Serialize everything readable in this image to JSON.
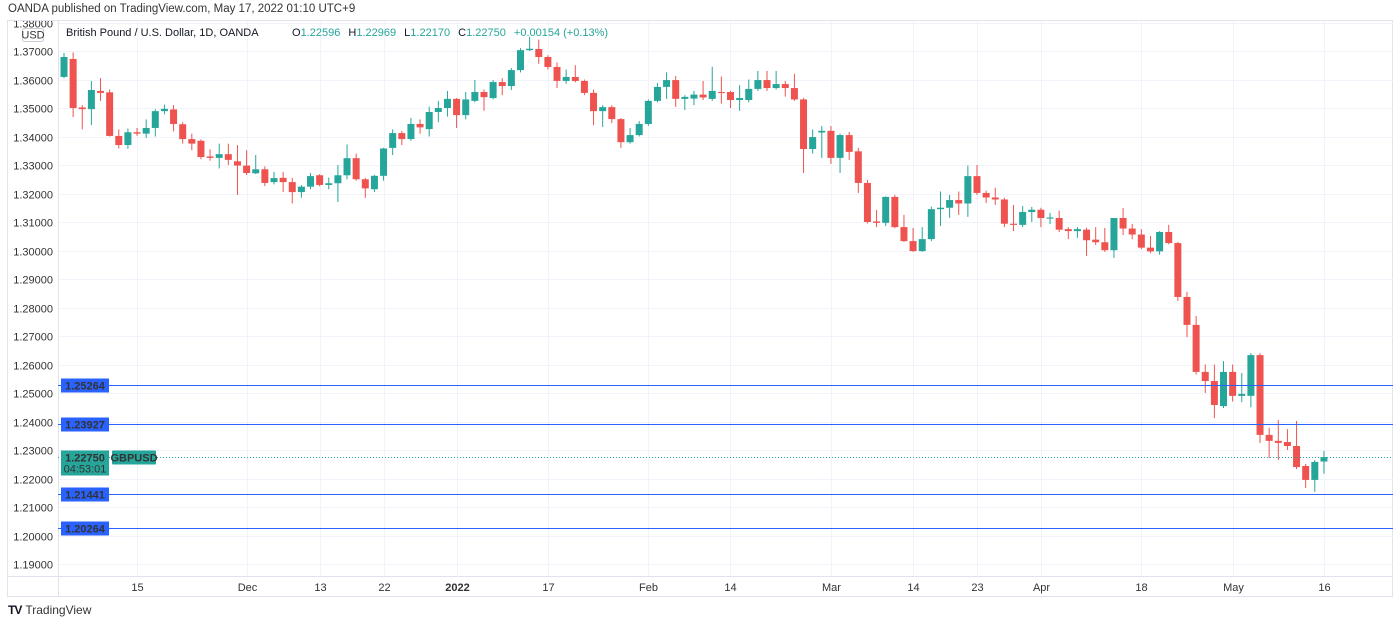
{
  "header": {
    "published": "OANDA published on TradingView.com, May 17, 2022 01:10 UTC+9"
  },
  "legend": {
    "symbol_desc": "British Pound / U.S. Dollar, 1D, OANDA",
    "o_label": "O",
    "o_value": "1.22596",
    "h_label": "H",
    "h_value": "1.22969",
    "l_label": "L",
    "l_value": "1.22170",
    "c_label": "C",
    "c_value": "1.22750",
    "change": "+0.00154 (+0.13%)"
  },
  "axis": {
    "currency_badge": "USD"
  },
  "current_price": {
    "value": "1.22750",
    "countdown": "04:53:01",
    "symbol": "GBPUSD",
    "price": 1.2275
  },
  "horizontal_lines": [
    {
      "label": "1.25264",
      "price": 1.25264
    },
    {
      "label": "1.23927",
      "price": 1.23927
    },
    {
      "label": "1.21441",
      "price": 1.21441
    },
    {
      "label": "1.20264",
      "price": 1.20264
    }
  ],
  "footer": {
    "brand": "TradingView"
  },
  "colors": {
    "up": "#26a69a",
    "down": "#ef5350",
    "line": "#2962ff",
    "grid": "#f0f3fa"
  },
  "chart_data": {
    "type": "candlestick",
    "title": "British Pound / U.S. Dollar, 1D, OANDA",
    "ylim": [
      1.185,
      1.381
    ],
    "y_ticks": [
      "1.38000",
      "1.37000",
      "1.36000",
      "1.35000",
      "1.34000",
      "1.33000",
      "1.32000",
      "1.31000",
      "1.30000",
      "1.29000",
      "1.28000",
      "1.27000",
      "1.26000",
      "1.25000",
      "1.24000",
      "1.23000",
      "1.22000",
      "1.21000",
      "1.20000",
      "1.19000"
    ],
    "x_ticks": [
      {
        "label": "15",
        "index": 8
      },
      {
        "label": "Dec",
        "index": 20
      },
      {
        "label": "13",
        "index": 28
      },
      {
        "label": "22",
        "index": 35
      },
      {
        "label": "2022",
        "index": 43,
        "bold": true
      },
      {
        "label": "17",
        "index": 53
      },
      {
        "label": "Feb",
        "index": 64
      },
      {
        "label": "14",
        "index": 73
      },
      {
        "label": "Mar",
        "index": 84
      },
      {
        "label": "14",
        "index": 93
      },
      {
        "label": "23",
        "index": 100
      },
      {
        "label": "Apr",
        "index": 107
      },
      {
        "label": "18",
        "index": 118
      },
      {
        "label": "May",
        "index": 128
      },
      {
        "label": "16",
        "index": 138
      }
    ],
    "ohlc": [
      [
        1.3609,
        1.3693,
        1.3605,
        1.3679
      ],
      [
        1.3672,
        1.3695,
        1.3468,
        1.35
      ],
      [
        1.3502,
        1.351,
        1.3425,
        1.3496
      ],
      [
        1.3496,
        1.3595,
        1.344,
        1.3563
      ],
      [
        1.356,
        1.3605,
        1.3525,
        1.3553
      ],
      [
        1.3555,
        1.3565,
        1.34,
        1.3402
      ],
      [
        1.3402,
        1.3425,
        1.3358,
        1.337
      ],
      [
        1.337,
        1.3428,
        1.3357,
        1.3415
      ],
      [
        1.3415,
        1.343,
        1.3402,
        1.341
      ],
      [
        1.341,
        1.346,
        1.3395,
        1.343
      ],
      [
        1.343,
        1.3496,
        1.34,
        1.3489
      ],
      [
        1.3489,
        1.3512,
        1.3478,
        1.3497
      ],
      [
        1.3495,
        1.351,
        1.3418,
        1.3444
      ],
      [
        1.3443,
        1.345,
        1.3375,
        1.3391
      ],
      [
        1.3391,
        1.341,
        1.3352,
        1.3375
      ],
      [
        1.3385,
        1.339,
        1.332,
        1.3328
      ],
      [
        1.333,
        1.3355,
        1.3315,
        1.3325
      ],
      [
        1.3325,
        1.3375,
        1.3288,
        1.3338
      ],
      [
        1.3338,
        1.3375,
        1.33,
        1.3318
      ],
      [
        1.3313,
        1.337,
        1.3195,
        1.3298
      ],
      [
        1.3298,
        1.3352,
        1.3265,
        1.3272
      ],
      [
        1.3271,
        1.3335,
        1.3268,
        1.3285
      ],
      [
        1.3285,
        1.3295,
        1.3226,
        1.3237
      ],
      [
        1.324,
        1.3276,
        1.3232,
        1.3254
      ],
      [
        1.3255,
        1.3276,
        1.3205,
        1.324
      ],
      [
        1.324,
        1.3255,
        1.3165,
        1.3205
      ],
      [
        1.3205,
        1.323,
        1.3185,
        1.3224
      ],
      [
        1.3224,
        1.3272,
        1.3215,
        1.3261
      ],
      [
        1.3264,
        1.3268,
        1.3225,
        1.323
      ],
      [
        1.323,
        1.3256,
        1.3215,
        1.3236
      ],
      [
        1.3236,
        1.33,
        1.317,
        1.3264
      ],
      [
        1.3264,
        1.3372,
        1.325,
        1.3324
      ],
      [
        1.3324,
        1.334,
        1.3245,
        1.325
      ],
      [
        1.325,
        1.3255,
        1.3185,
        1.3218
      ],
      [
        1.3215,
        1.3265,
        1.3205,
        1.3262
      ],
      [
        1.3262,
        1.336,
        1.3245,
        1.3358
      ],
      [
        1.336,
        1.3425,
        1.3335,
        1.3412
      ],
      [
        1.3412,
        1.342,
        1.337,
        1.3391
      ],
      [
        1.3391,
        1.3465,
        1.3385,
        1.3444
      ],
      [
        1.3444,
        1.346,
        1.341,
        1.3432
      ],
      [
        1.3426,
        1.3505,
        1.34,
        1.3486
      ],
      [
        1.3486,
        1.3525,
        1.345,
        1.35
      ],
      [
        1.35,
        1.356,
        1.347,
        1.3532
      ],
      [
        1.3532,
        1.3535,
        1.343,
        1.3475
      ],
      [
        1.3475,
        1.3556,
        1.346,
        1.353
      ],
      [
        1.3525,
        1.3598,
        1.352,
        1.3556
      ],
      [
        1.3556,
        1.3565,
        1.349,
        1.3538
      ],
      [
        1.3535,
        1.3598,
        1.353,
        1.3591
      ],
      [
        1.3591,
        1.3605,
        1.3545,
        1.3577
      ],
      [
        1.3577,
        1.364,
        1.3563,
        1.3633
      ],
      [
        1.3633,
        1.371,
        1.3625,
        1.3703
      ],
      [
        1.3703,
        1.375,
        1.37,
        1.3708
      ],
      [
        1.3707,
        1.374,
        1.3655,
        1.3679
      ],
      [
        1.3679,
        1.3685,
        1.3635,
        1.3644
      ],
      [
        1.3644,
        1.366,
        1.357,
        1.3595
      ],
      [
        1.3595,
        1.3635,
        1.3585,
        1.3609
      ],
      [
        1.3609,
        1.365,
        1.359,
        1.3595
      ],
      [
        1.3595,
        1.36,
        1.3545,
        1.3553
      ],
      [
        1.3553,
        1.3565,
        1.344,
        1.3489
      ],
      [
        1.3489,
        1.351,
        1.3433,
        1.3503
      ],
      [
        1.3503,
        1.351,
        1.3447,
        1.3461
      ],
      [
        1.3461,
        1.3465,
        1.336,
        1.338
      ],
      [
        1.338,
        1.343,
        1.3375,
        1.3405
      ],
      [
        1.3405,
        1.3454,
        1.34,
        1.3444
      ],
      [
        1.3444,
        1.353,
        1.3437,
        1.3525
      ],
      [
        1.3525,
        1.3588,
        1.352,
        1.3574
      ],
      [
        1.3574,
        1.3625,
        1.3532,
        1.3598
      ],
      [
        1.3598,
        1.3612,
        1.3504,
        1.3532
      ],
      [
        1.3532,
        1.3545,
        1.3493,
        1.3539
      ],
      [
        1.3533,
        1.356,
        1.351,
        1.3547
      ],
      [
        1.3547,
        1.3595,
        1.3528,
        1.3537
      ],
      [
        1.3532,
        1.3645,
        1.3525,
        1.356
      ],
      [
        1.3556,
        1.361,
        1.3515,
        1.3553
      ],
      [
        1.3556,
        1.356,
        1.35,
        1.3528
      ],
      [
        1.3528,
        1.358,
        1.349,
        1.3535
      ],
      [
        1.3528,
        1.36,
        1.352,
        1.3567
      ],
      [
        1.3567,
        1.363,
        1.356,
        1.3598
      ],
      [
        1.3598,
        1.363,
        1.356,
        1.357
      ],
      [
        1.357,
        1.363,
        1.3565,
        1.3584
      ],
      [
        1.3584,
        1.3595,
        1.354,
        1.357
      ],
      [
        1.357,
        1.362,
        1.3525,
        1.353
      ],
      [
        1.353,
        1.3535,
        1.3272,
        1.3356
      ],
      [
        1.3356,
        1.3425,
        1.334,
        1.3398
      ],
      [
        1.3414,
        1.3437,
        1.3325,
        1.342
      ],
      [
        1.342,
        1.3437,
        1.3304,
        1.3325
      ],
      [
        1.3325,
        1.341,
        1.3272,
        1.3405
      ],
      [
        1.3405,
        1.3416,
        1.3318,
        1.3346
      ],
      [
        1.3348,
        1.336,
        1.3202,
        1.3237
      ],
      [
        1.3237,
        1.3248,
        1.3095,
        1.31
      ],
      [
        1.3102,
        1.3142,
        1.3082,
        1.3097
      ],
      [
        1.3097,
        1.319,
        1.3086,
        1.3188
      ],
      [
        1.3188,
        1.3195,
        1.3078,
        1.3082
      ],
      [
        1.3082,
        1.3125,
        1.303,
        1.3033
      ],
      [
        1.3033,
        1.3079,
        1.2995,
        1.2998
      ],
      [
        1.2998,
        1.3082,
        1.2995,
        1.304
      ],
      [
        1.304,
        1.3154,
        1.3033,
        1.3145
      ],
      [
        1.3145,
        1.3207,
        1.3086,
        1.315
      ],
      [
        1.315,
        1.3195,
        1.3114,
        1.3177
      ],
      [
        1.3177,
        1.3207,
        1.3125,
        1.3165
      ],
      [
        1.3165,
        1.3298,
        1.3118,
        1.3261
      ],
      [
        1.3261,
        1.33,
        1.3195,
        1.3202
      ],
      [
        1.3202,
        1.321,
        1.3167,
        1.3186
      ],
      [
        1.3186,
        1.322,
        1.316,
        1.3179
      ],
      [
        1.3179,
        1.3185,
        1.3082,
        1.3094
      ],
      [
        1.3094,
        1.316,
        1.3068,
        1.309
      ],
      [
        1.309,
        1.3156,
        1.3082,
        1.3135
      ],
      [
        1.3135,
        1.3153,
        1.31,
        1.3143
      ],
      [
        1.3143,
        1.315,
        1.3082,
        1.3114
      ],
      [
        1.3112,
        1.3132,
        1.3093,
        1.3116
      ],
      [
        1.3114,
        1.314,
        1.3065,
        1.3073
      ],
      [
        1.3075,
        1.3082,
        1.304,
        1.3068
      ],
      [
        1.3068,
        1.3082,
        1.3044,
        1.3075
      ],
      [
        1.3073,
        1.308,
        1.2981,
        1.3036
      ],
      [
        1.3038,
        1.3082,
        1.3019,
        1.3029
      ],
      [
        1.3029,
        1.3079,
        1.2995,
        1.3001
      ],
      [
        1.3001,
        1.3114,
        1.2974,
        1.3114
      ],
      [
        1.3114,
        1.3149,
        1.3054,
        1.3077
      ],
      [
        1.3077,
        1.3093,
        1.304,
        1.3056
      ],
      [
        1.3056,
        1.3075,
        1.3005,
        1.301
      ],
      [
        1.301,
        1.3051,
        1.299,
        1.2997
      ],
      [
        1.2997,
        1.3068,
        1.2985,
        1.3065
      ],
      [
        1.3065,
        1.309,
        1.3022,
        1.3026
      ],
      [
        1.3026,
        1.303,
        1.2823,
        1.2837
      ],
      [
        1.2837,
        1.2855,
        1.2696,
        1.2739
      ],
      [
        1.2739,
        1.277,
        1.2565,
        1.2574
      ],
      [
        1.2574,
        1.26,
        1.25,
        1.2542
      ],
      [
        1.2542,
        1.26,
        1.2412,
        1.2458
      ],
      [
        1.2454,
        1.2612,
        1.2447,
        1.2574
      ],
      [
        1.2574,
        1.26,
        1.247,
        1.249
      ],
      [
        1.249,
        1.257,
        1.2468,
        1.2497
      ],
      [
        1.249,
        1.264,
        1.245,
        1.2633
      ],
      [
        1.2633,
        1.264,
        1.2325,
        1.2353
      ],
      [
        1.2353,
        1.2378,
        1.2272,
        1.2332
      ],
      [
        1.2332,
        1.2405,
        1.2265,
        1.2325
      ],
      [
        1.2328,
        1.2373,
        1.23,
        1.2314
      ],
      [
        1.2314,
        1.2402,
        1.2233,
        1.224
      ],
      [
        1.2244,
        1.2251,
        1.2167,
        1.2195
      ],
      [
        1.2195,
        1.2265,
        1.2153,
        1.2258
      ],
      [
        1.22596,
        1.22969,
        1.2217,
        1.2275
      ]
    ]
  }
}
